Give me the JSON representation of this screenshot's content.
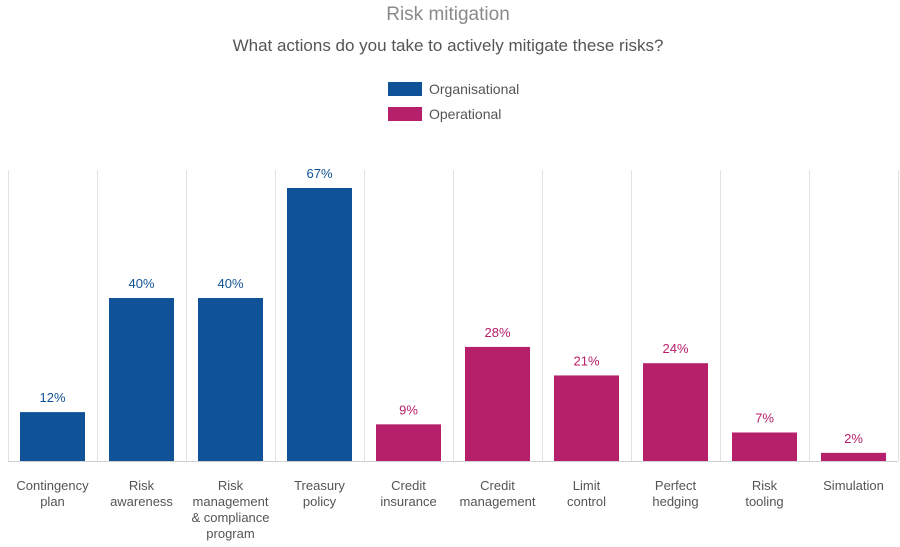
{
  "chart_data": {
    "type": "bar",
    "title": "Risk mitigation",
    "subtitle": "What actions do you take to actively mitigate these risks?",
    "categories": [
      [
        "Contingency",
        "plan"
      ],
      [
        "Risk",
        "awareness"
      ],
      [
        "Risk",
        "management",
        "& compliance",
        "program"
      ],
      [
        "Treasury",
        "policy"
      ],
      [
        "Credit",
        "insurance"
      ],
      [
        "Credit",
        "management"
      ],
      [
        "Limit",
        "control"
      ],
      [
        "Perfect",
        "hedging"
      ],
      [
        "Risk",
        "tooling"
      ],
      [
        "Simulation"
      ]
    ],
    "values": [
      12,
      40,
      40,
      67,
      9,
      28,
      21,
      24,
      7,
      2
    ],
    "value_labels": [
      "12%",
      "40%",
      "40%",
      "67%",
      "9%",
      "28%",
      "21%",
      "24%",
      "7%",
      "2%"
    ],
    "series_assignment": [
      0,
      0,
      0,
      0,
      1,
      1,
      1,
      1,
      1,
      1
    ],
    "legend": {
      "placement": "top-center",
      "entries": [
        {
          "name": "Organisational",
          "color": "#0f5297"
        },
        {
          "name": "Operational",
          "color": "#b6206a"
        }
      ]
    },
    "ylim": [
      0,
      67
    ],
    "grid": false
  }
}
